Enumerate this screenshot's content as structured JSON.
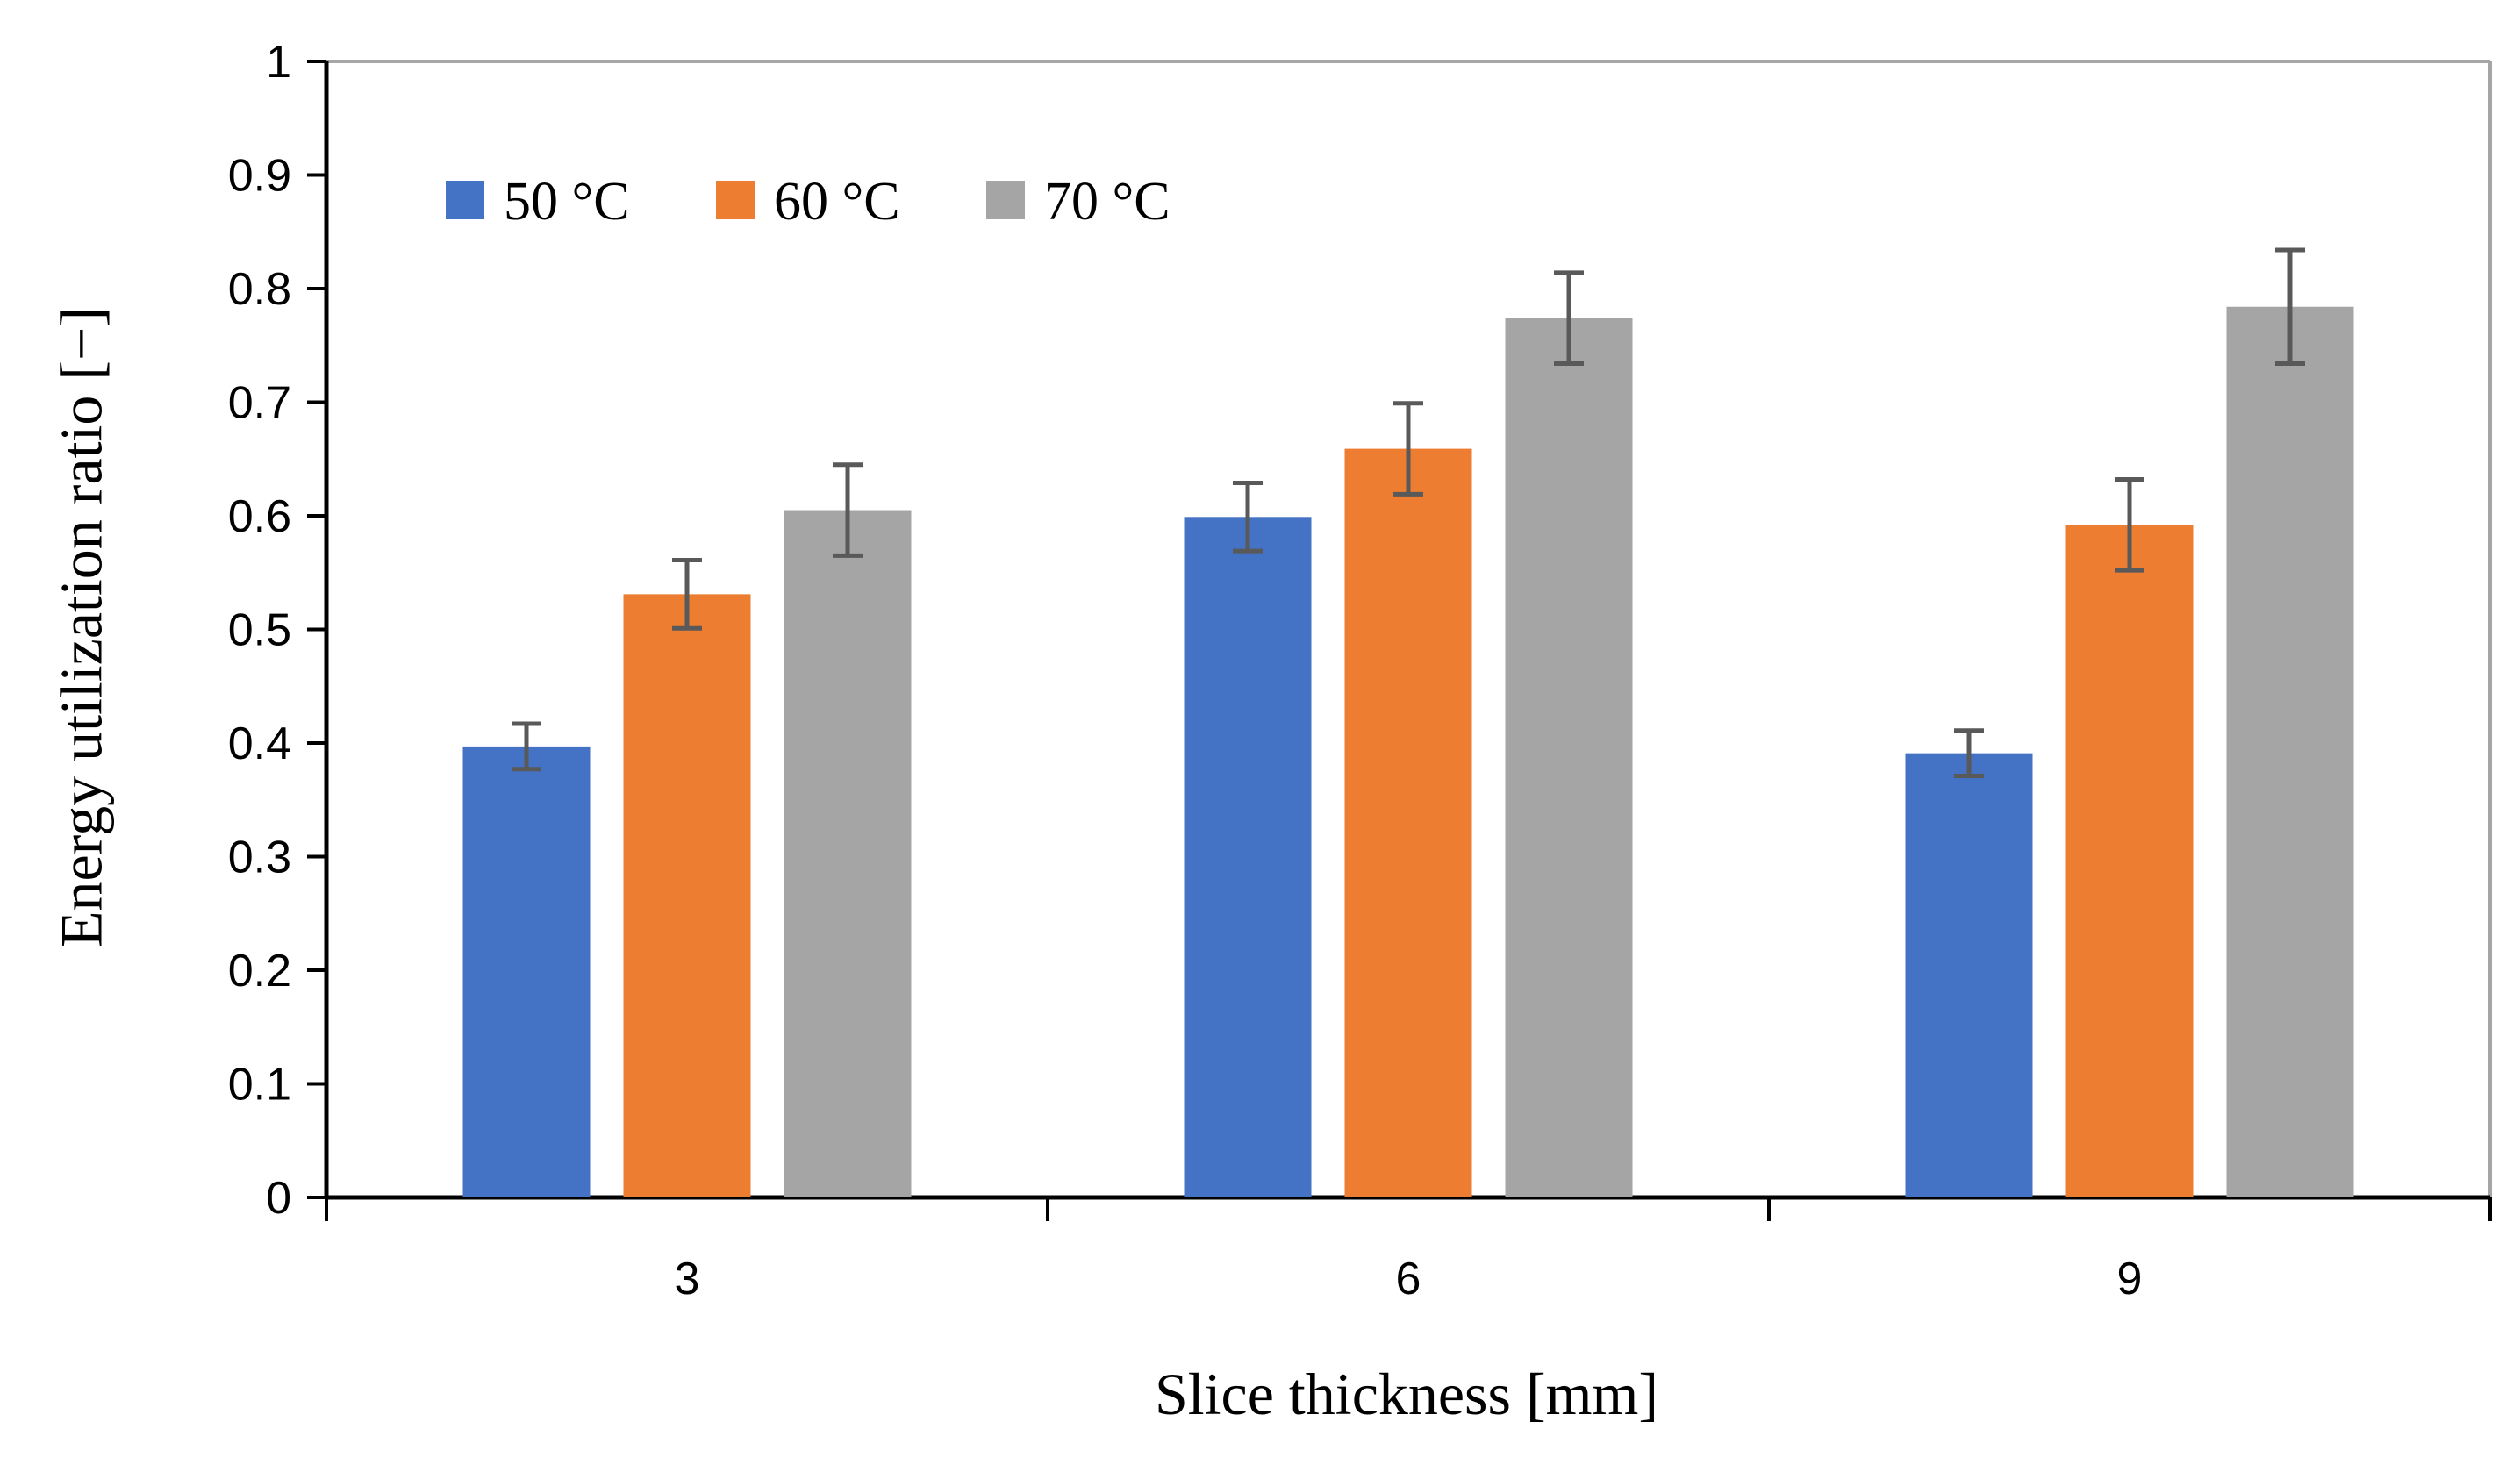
{
  "chart_data": {
    "type": "bar",
    "categories": [
      "3",
      "6",
      "9"
    ],
    "series": [
      {
        "name": "50 °C",
        "color": "#4472C4",
        "values": [
          0.397,
          0.599,
          0.391
        ],
        "errors": [
          0.02,
          0.03,
          0.02
        ]
      },
      {
        "name": "60 °C",
        "color": "#ED7D31",
        "values": [
          0.531,
          0.659,
          0.592
        ],
        "errors": [
          0.03,
          0.04,
          0.04
        ]
      },
      {
        "name": "70 °C",
        "color": "#A5A5A5",
        "values": [
          0.605,
          0.774,
          0.784
        ],
        "errors": [
          0.04,
          0.04,
          0.05
        ]
      }
    ],
    "xlabel": "Slice thickness [mm]",
    "ylabel": "Energy utilization ratio [−]",
    "ylim": [
      0,
      1
    ],
    "yticks": [
      "0",
      "0.1",
      "0.2",
      "0.3",
      "0.4",
      "0.5",
      "0.6",
      "0.7",
      "0.8",
      "0.9",
      "1"
    ],
    "grid": false,
    "legend": "top-left",
    "error_bar_color": "#595959"
  }
}
